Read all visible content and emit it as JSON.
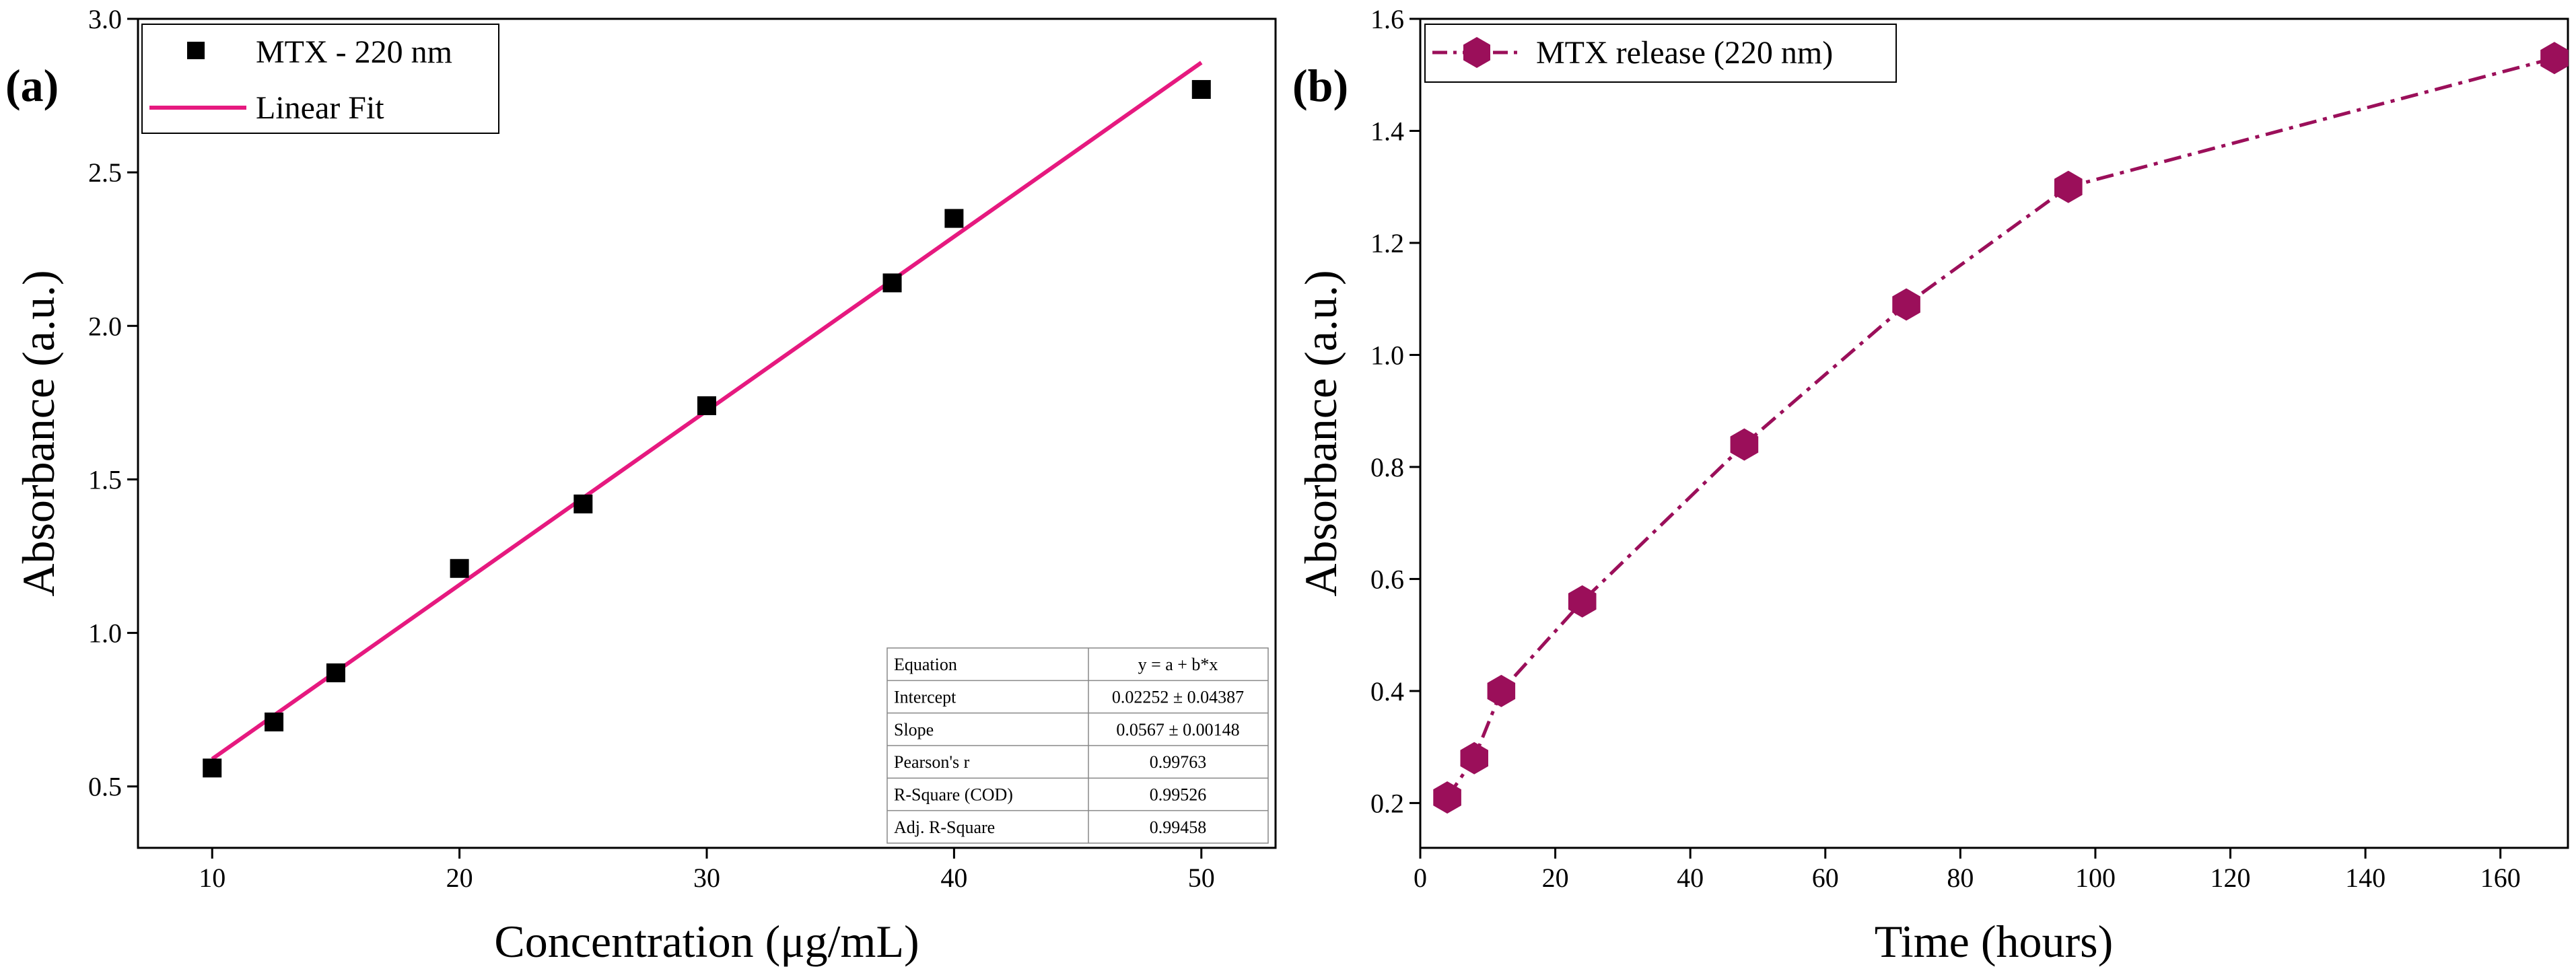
{
  "colors": {
    "fit_line": "#e6197f",
    "scatter_marker": "#000000",
    "release_marker": "#9b0f5a",
    "release_line": "#9b0f5a",
    "axis": "#000000"
  },
  "chart_data": [
    {
      "id": "a",
      "type": "scatter",
      "panel_label": "(a)",
      "xlabel": "Concentration (μg/mL)",
      "ylabel": "Absorbance (a.u.)",
      "xlim": [
        7,
        53
      ],
      "ylim": [
        0.3,
        3.0
      ],
      "xticks": [
        10,
        20,
        30,
        40,
        50
      ],
      "yticks": [
        0.5,
        1.0,
        1.5,
        2.0,
        2.5,
        3.0
      ],
      "ytick_labels": [
        "0.5",
        "1.0",
        "1.5",
        "2.0",
        "2.5",
        "3.0"
      ],
      "grid": false,
      "legend_position": "top-left",
      "series": [
        {
          "name": "MTX - 220 nm",
          "marker": "square",
          "x": [
            10,
            12.5,
            15,
            20,
            25,
            30,
            37.5,
            40,
            50
          ],
          "y": [
            0.56,
            0.71,
            0.87,
            1.21,
            1.42,
            1.74,
            2.14,
            2.35,
            2.77
          ]
        }
      ],
      "fit": {
        "name": "Linear Fit",
        "intercept": 0.02252,
        "slope": 0.0567,
        "x_range": [
          10,
          50
        ]
      },
      "stats_table": [
        [
          "Equation",
          "y = a + b*x"
        ],
        [
          "Intercept",
          "0.02252 ± 0.04387"
        ],
        [
          "Slope",
          "0.0567 ± 0.00148"
        ],
        [
          "Pearson's r",
          "0.99763"
        ],
        [
          "R-Square (COD)",
          "0.99526"
        ],
        [
          "Adj. R-Square",
          "0.99458"
        ]
      ]
    },
    {
      "id": "b",
      "type": "line",
      "panel_label": "(b)",
      "xlabel": "Time (hours)",
      "ylabel": "Absorbance (a.u.)",
      "xlim": [
        0,
        170
      ],
      "ylim": [
        0.12,
        1.6
      ],
      "xticks": [
        0,
        20,
        40,
        60,
        80,
        100,
        120,
        140,
        160
      ],
      "yticks": [
        0.2,
        0.4,
        0.6,
        0.8,
        1.0,
        1.2,
        1.4,
        1.6
      ],
      "ytick_labels": [
        "0.2",
        "0.4",
        "0.6",
        "0.8",
        "1.0",
        "1.2",
        "1.4",
        "1.6"
      ],
      "grid": false,
      "legend_position": "top-left",
      "series": [
        {
          "name": "MTX release (220 nm)",
          "marker": "hexagon",
          "line_style": "dash-dot",
          "x": [
            4,
            8,
            12,
            24,
            48,
            72,
            96,
            168
          ],
          "y": [
            0.21,
            0.28,
            0.4,
            0.56,
            0.84,
            1.09,
            1.3,
            1.53
          ]
        }
      ]
    }
  ]
}
